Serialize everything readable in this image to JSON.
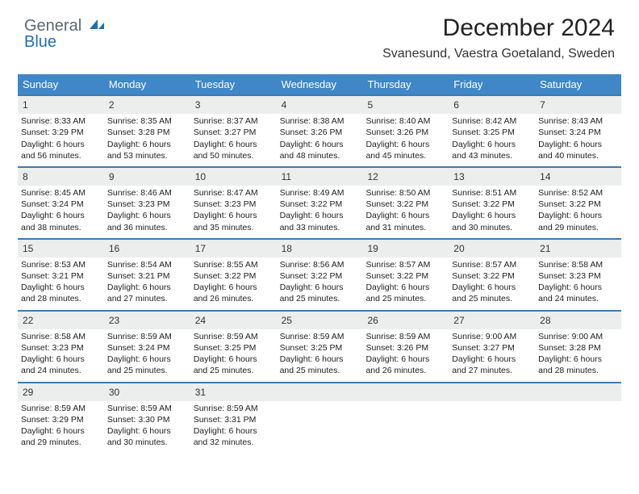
{
  "logo": {
    "word1": "General",
    "word2": "Blue"
  },
  "colors": {
    "header_blue": "#3f87c7",
    "week_rule": "#3f7aad",
    "daynum_bg": "#eceded",
    "logo_gray": "#5b6770",
    "logo_blue": "#1f6fb2",
    "text": "#222222",
    "white": "#ffffff"
  },
  "title": "December 2024",
  "location": "Svanesund, Vaestra Goetaland, Sweden",
  "dow": [
    "Sunday",
    "Monday",
    "Tuesday",
    "Wednesday",
    "Thursday",
    "Friday",
    "Saturday"
  ],
  "first_weekday_index": 0,
  "days": [
    {
      "n": 1,
      "sunrise": "8:33 AM",
      "sunset": "3:29 PM",
      "daylight": "6 hours and 56 minutes."
    },
    {
      "n": 2,
      "sunrise": "8:35 AM",
      "sunset": "3:28 PM",
      "daylight": "6 hours and 53 minutes."
    },
    {
      "n": 3,
      "sunrise": "8:37 AM",
      "sunset": "3:27 PM",
      "daylight": "6 hours and 50 minutes."
    },
    {
      "n": 4,
      "sunrise": "8:38 AM",
      "sunset": "3:26 PM",
      "daylight": "6 hours and 48 minutes."
    },
    {
      "n": 5,
      "sunrise": "8:40 AM",
      "sunset": "3:26 PM",
      "daylight": "6 hours and 45 minutes."
    },
    {
      "n": 6,
      "sunrise": "8:42 AM",
      "sunset": "3:25 PM",
      "daylight": "6 hours and 43 minutes."
    },
    {
      "n": 7,
      "sunrise": "8:43 AM",
      "sunset": "3:24 PM",
      "daylight": "6 hours and 40 minutes."
    },
    {
      "n": 8,
      "sunrise": "8:45 AM",
      "sunset": "3:24 PM",
      "daylight": "6 hours and 38 minutes."
    },
    {
      "n": 9,
      "sunrise": "8:46 AM",
      "sunset": "3:23 PM",
      "daylight": "6 hours and 36 minutes."
    },
    {
      "n": 10,
      "sunrise": "8:47 AM",
      "sunset": "3:23 PM",
      "daylight": "6 hours and 35 minutes."
    },
    {
      "n": 11,
      "sunrise": "8:49 AM",
      "sunset": "3:22 PM",
      "daylight": "6 hours and 33 minutes."
    },
    {
      "n": 12,
      "sunrise": "8:50 AM",
      "sunset": "3:22 PM",
      "daylight": "6 hours and 31 minutes."
    },
    {
      "n": 13,
      "sunrise": "8:51 AM",
      "sunset": "3:22 PM",
      "daylight": "6 hours and 30 minutes."
    },
    {
      "n": 14,
      "sunrise": "8:52 AM",
      "sunset": "3:22 PM",
      "daylight": "6 hours and 29 minutes."
    },
    {
      "n": 15,
      "sunrise": "8:53 AM",
      "sunset": "3:21 PM",
      "daylight": "6 hours and 28 minutes."
    },
    {
      "n": 16,
      "sunrise": "8:54 AM",
      "sunset": "3:21 PM",
      "daylight": "6 hours and 27 minutes."
    },
    {
      "n": 17,
      "sunrise": "8:55 AM",
      "sunset": "3:22 PM",
      "daylight": "6 hours and 26 minutes."
    },
    {
      "n": 18,
      "sunrise": "8:56 AM",
      "sunset": "3:22 PM",
      "daylight": "6 hours and 25 minutes."
    },
    {
      "n": 19,
      "sunrise": "8:57 AM",
      "sunset": "3:22 PM",
      "daylight": "6 hours and 25 minutes."
    },
    {
      "n": 20,
      "sunrise": "8:57 AM",
      "sunset": "3:22 PM",
      "daylight": "6 hours and 25 minutes."
    },
    {
      "n": 21,
      "sunrise": "8:58 AM",
      "sunset": "3:23 PM",
      "daylight": "6 hours and 24 minutes."
    },
    {
      "n": 22,
      "sunrise": "8:58 AM",
      "sunset": "3:23 PM",
      "daylight": "6 hours and 24 minutes."
    },
    {
      "n": 23,
      "sunrise": "8:59 AM",
      "sunset": "3:24 PM",
      "daylight": "6 hours and 25 minutes."
    },
    {
      "n": 24,
      "sunrise": "8:59 AM",
      "sunset": "3:25 PM",
      "daylight": "6 hours and 25 minutes."
    },
    {
      "n": 25,
      "sunrise": "8:59 AM",
      "sunset": "3:25 PM",
      "daylight": "6 hours and 25 minutes."
    },
    {
      "n": 26,
      "sunrise": "8:59 AM",
      "sunset": "3:26 PM",
      "daylight": "6 hours and 26 minutes."
    },
    {
      "n": 27,
      "sunrise": "9:00 AM",
      "sunset": "3:27 PM",
      "daylight": "6 hours and 27 minutes."
    },
    {
      "n": 28,
      "sunrise": "9:00 AM",
      "sunset": "3:28 PM",
      "daylight": "6 hours and 28 minutes."
    },
    {
      "n": 29,
      "sunrise": "8:59 AM",
      "sunset": "3:29 PM",
      "daylight": "6 hours and 29 minutes."
    },
    {
      "n": 30,
      "sunrise": "8:59 AM",
      "sunset": "3:30 PM",
      "daylight": "6 hours and 30 minutes."
    },
    {
      "n": 31,
      "sunrise": "8:59 AM",
      "sunset": "3:31 PM",
      "daylight": "6 hours and 32 minutes."
    }
  ],
  "labels": {
    "sunrise": "Sunrise: ",
    "sunset": "Sunset: ",
    "daylight": "Daylight: "
  }
}
